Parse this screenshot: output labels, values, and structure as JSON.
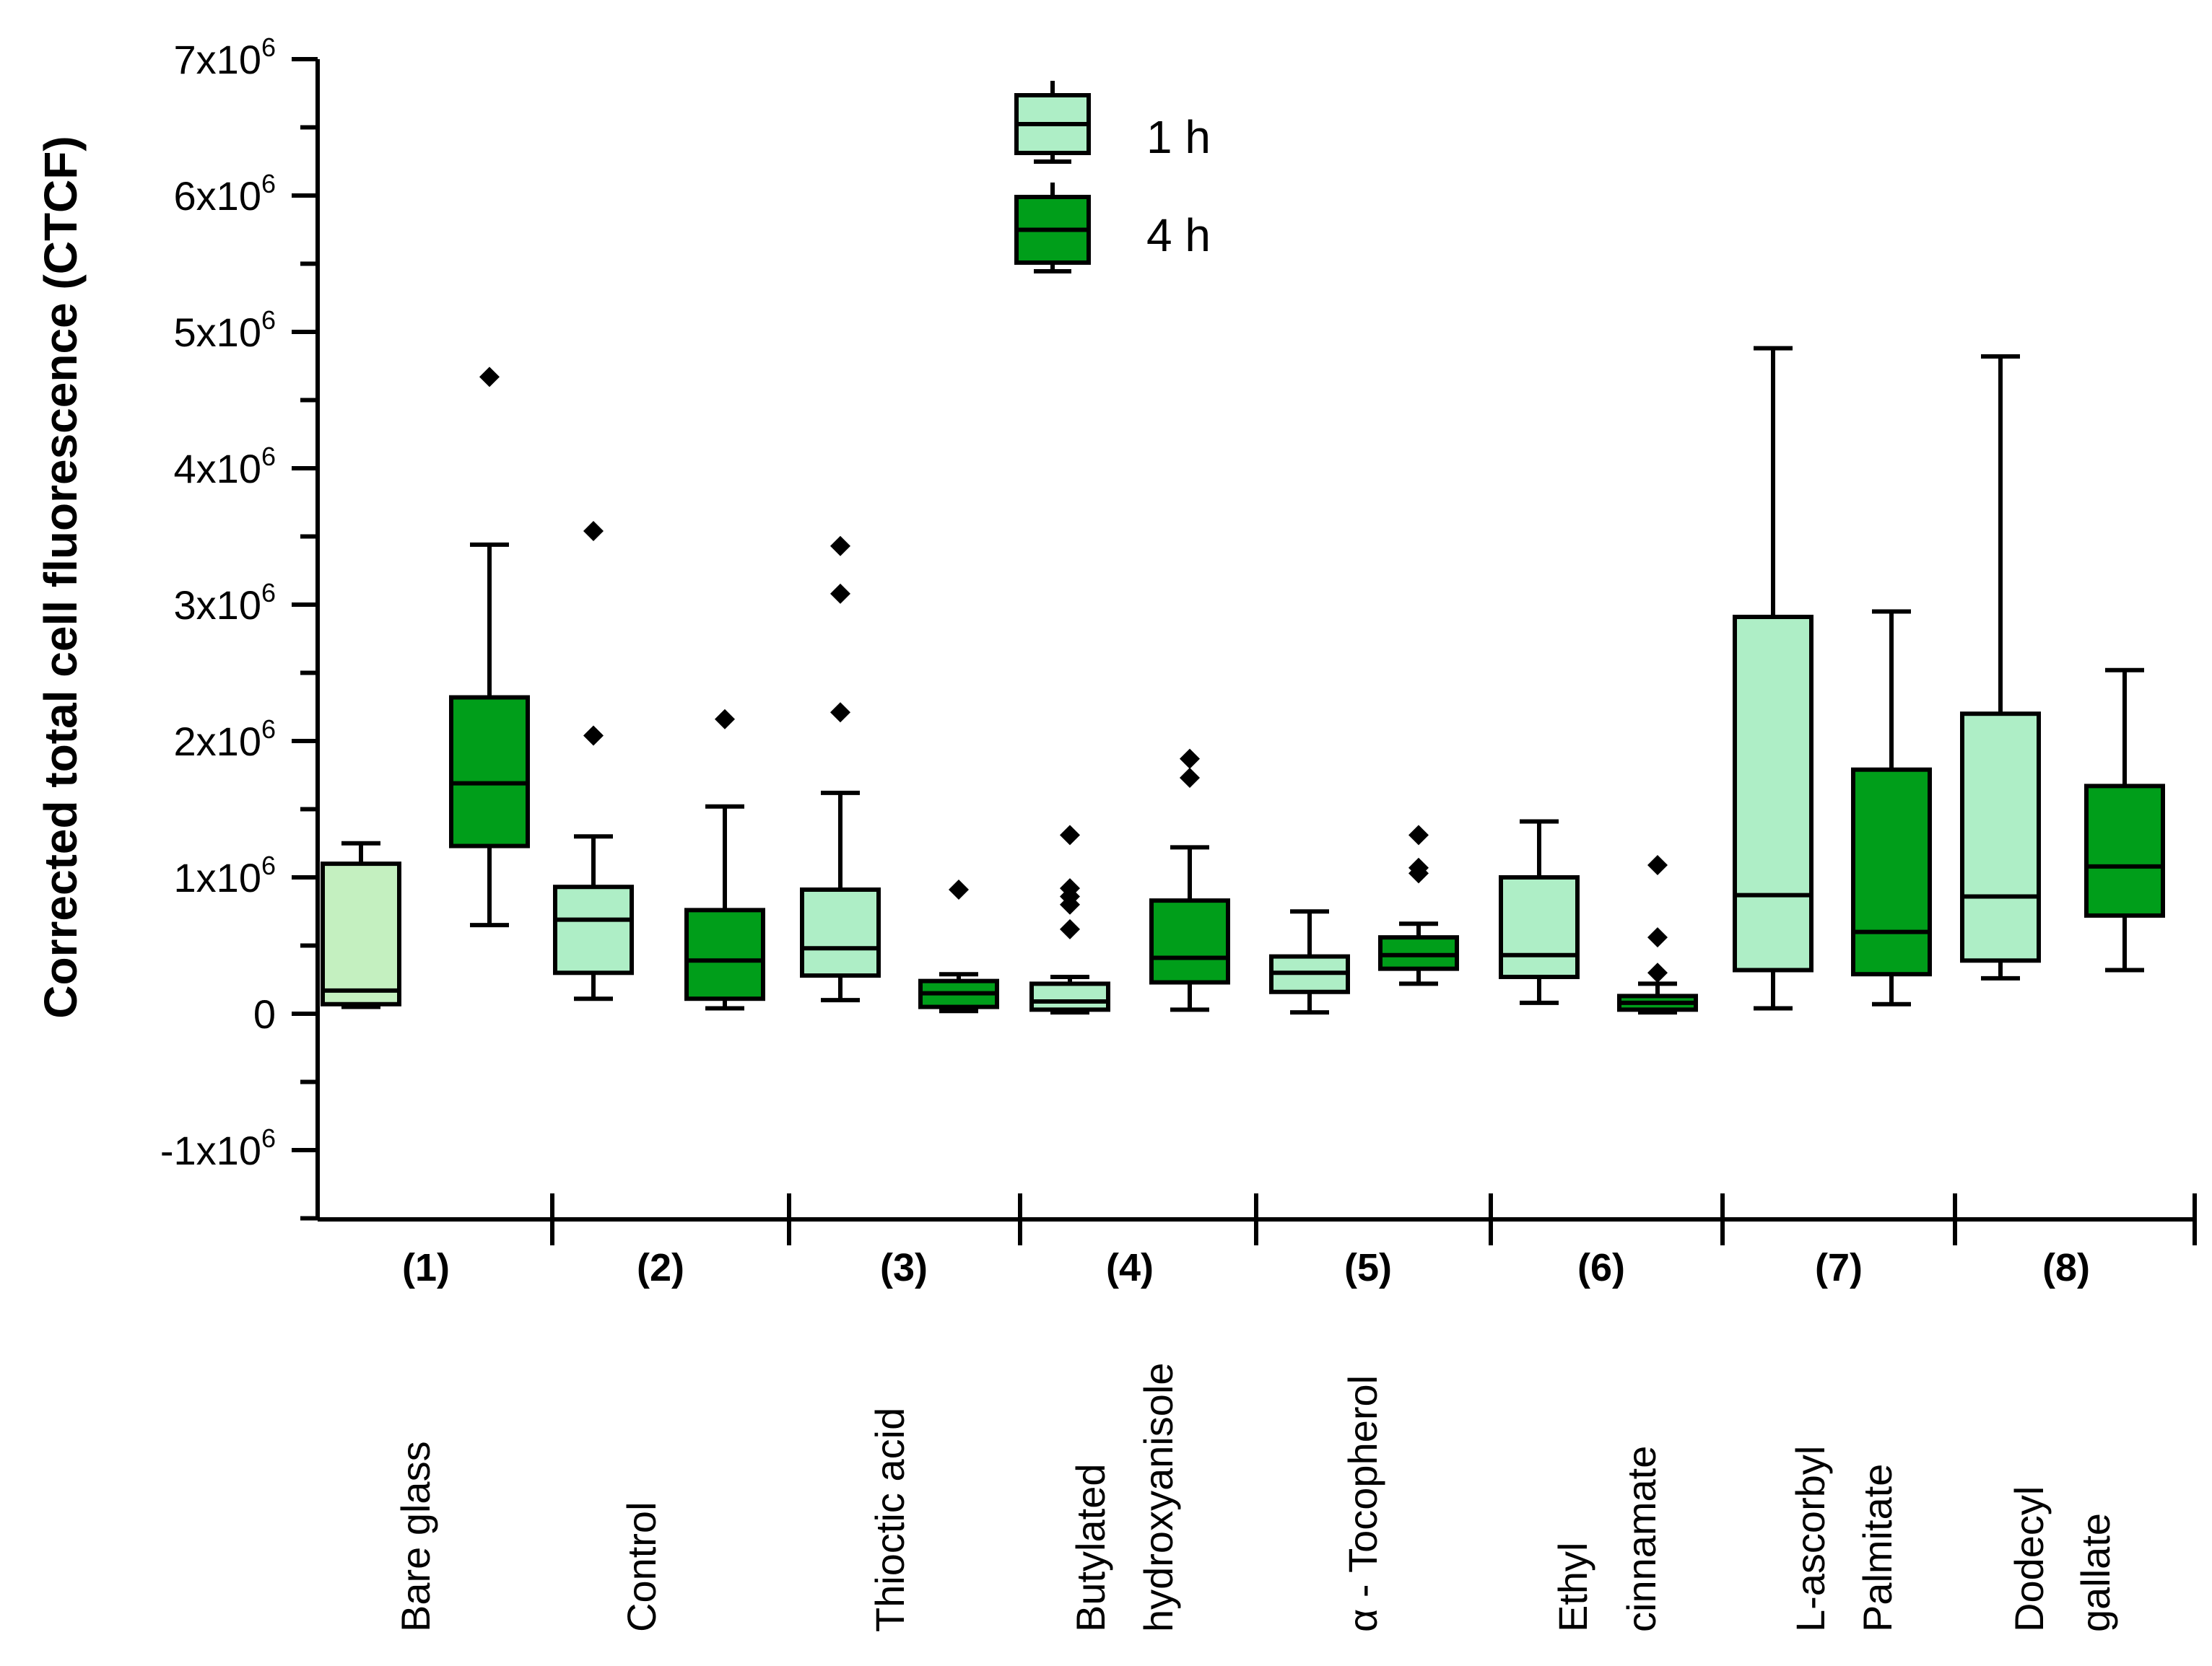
{
  "chart_data": {
    "type": "boxplot",
    "title": "",
    "xlabel": "",
    "ylabel": "Corrected total cell fluorescence (CTCF)",
    "ylim": [
      -1500000,
      7000000
    ],
    "y_ticks": [
      {
        "value": 7000000,
        "mant": "7x10",
        "exp": "6"
      },
      {
        "value": 6000000,
        "mant": "6x10",
        "exp": "6"
      },
      {
        "value": 5000000,
        "mant": "5x10",
        "exp": "6"
      },
      {
        "value": 4000000,
        "mant": "4x10",
        "exp": "6"
      },
      {
        "value": 3000000,
        "mant": "3x10",
        "exp": "6"
      },
      {
        "value": 2000000,
        "mant": "2x10",
        "exp": "6"
      },
      {
        "value": 1000000,
        "mant": "1x10",
        "exp": "6"
      },
      {
        "value": 0,
        "mant": "0",
        "exp": ""
      },
      {
        "value": -1000000,
        "mant": "-1x10",
        "exp": "6"
      }
    ],
    "legend": {
      "position": "top-center",
      "entries": [
        {
          "name": "1 h",
          "color": "#aeeec6"
        },
        {
          "name": "4 h",
          "color": "#009e1a"
        }
      ]
    },
    "colors": {
      "h1": "#aeeec6",
      "h1_first": "#c4f0c0",
      "h4": "#009e1a",
      "stroke": "#000000"
    },
    "categories": [
      {
        "number": "(1)",
        "name": [
          "Bare glass"
        ]
      },
      {
        "number": "(2)",
        "name": [
          "Control"
        ]
      },
      {
        "number": "(3)",
        "name": [
          "Thioctic acid"
        ]
      },
      {
        "number": "(4)",
        "name": [
          "Butylated",
          "hydroxyanisole"
        ]
      },
      {
        "number": "(5)",
        "name": [
          "α - Tocopherol"
        ]
      },
      {
        "number": "(6)",
        "name": [
          "Ethyl",
          "cinnamate"
        ]
      },
      {
        "number": "(7)",
        "name": [
          "L-ascorbyl",
          "Palmitate"
        ]
      },
      {
        "number": "(8)",
        "name": [
          "Dodecyl",
          "gallate"
        ]
      }
    ],
    "series": [
      {
        "name": "1 h",
        "boxes": [
          {
            "min": 50000,
            "q1": 70000,
            "median": 170000,
            "q3": 1100000,
            "max": 1250000,
            "outliers": []
          },
          {
            "min": 110000,
            "q1": 300000,
            "median": 690000,
            "q3": 930000,
            "max": 1300000,
            "outliers": [
              2040000,
              3540000
            ]
          },
          {
            "min": 100000,
            "q1": 280000,
            "median": 480000,
            "q3": 910000,
            "max": 1620000,
            "outliers": [
              2210000,
              3080000,
              3430000
            ]
          },
          {
            "min": 10000,
            "q1": 30000,
            "median": 90000,
            "q3": 220000,
            "max": 270000,
            "outliers": [
              620000,
              800000,
              860000,
              920000,
              1310000
            ]
          },
          {
            "min": 10000,
            "q1": 160000,
            "median": 300000,
            "q3": 420000,
            "max": 750000,
            "outliers": []
          },
          {
            "min": 80000,
            "q1": 270000,
            "median": 430000,
            "q3": 1000000,
            "max": 1410000,
            "outliers": []
          },
          {
            "min": 40000,
            "q1": 320000,
            "median": 870000,
            "q3": 2910000,
            "max": 4880000,
            "outliers": []
          },
          {
            "min": 260000,
            "q1": 390000,
            "median": 860000,
            "q3": 2200000,
            "max": 4820000,
            "outliers": []
          }
        ]
      },
      {
        "name": "4 h",
        "boxes": [
          {
            "min": 650000,
            "q1": 1230000,
            "median": 1690000,
            "q3": 2320000,
            "max": 3440000,
            "outliers": [
              4670000
            ]
          },
          {
            "min": 40000,
            "q1": 110000,
            "median": 390000,
            "q3": 760000,
            "max": 1520000,
            "outliers": [
              2160000
            ]
          },
          {
            "min": 20000,
            "q1": 50000,
            "median": 150000,
            "q3": 240000,
            "max": 290000,
            "outliers": [
              910000
            ]
          },
          {
            "min": 30000,
            "q1": 230000,
            "median": 410000,
            "q3": 830000,
            "max": 1220000,
            "outliers": [
              1730000,
              1870000
            ]
          },
          {
            "min": 220000,
            "q1": 330000,
            "median": 430000,
            "q3": 560000,
            "max": 660000,
            "outliers": [
              1030000,
              1070000,
              1310000
            ]
          },
          {
            "min": 10000,
            "q1": 30000,
            "median": 80000,
            "q3": 130000,
            "max": 220000,
            "outliers": [
              300000,
              560000,
              1090000
            ]
          },
          {
            "min": 70000,
            "q1": 290000,
            "median": 600000,
            "q3": 1790000,
            "max": 2950000,
            "outliers": []
          },
          {
            "min": 320000,
            "q1": 720000,
            "median": 1080000,
            "q3": 1670000,
            "max": 2520000,
            "outliers": []
          }
        ]
      }
    ]
  }
}
